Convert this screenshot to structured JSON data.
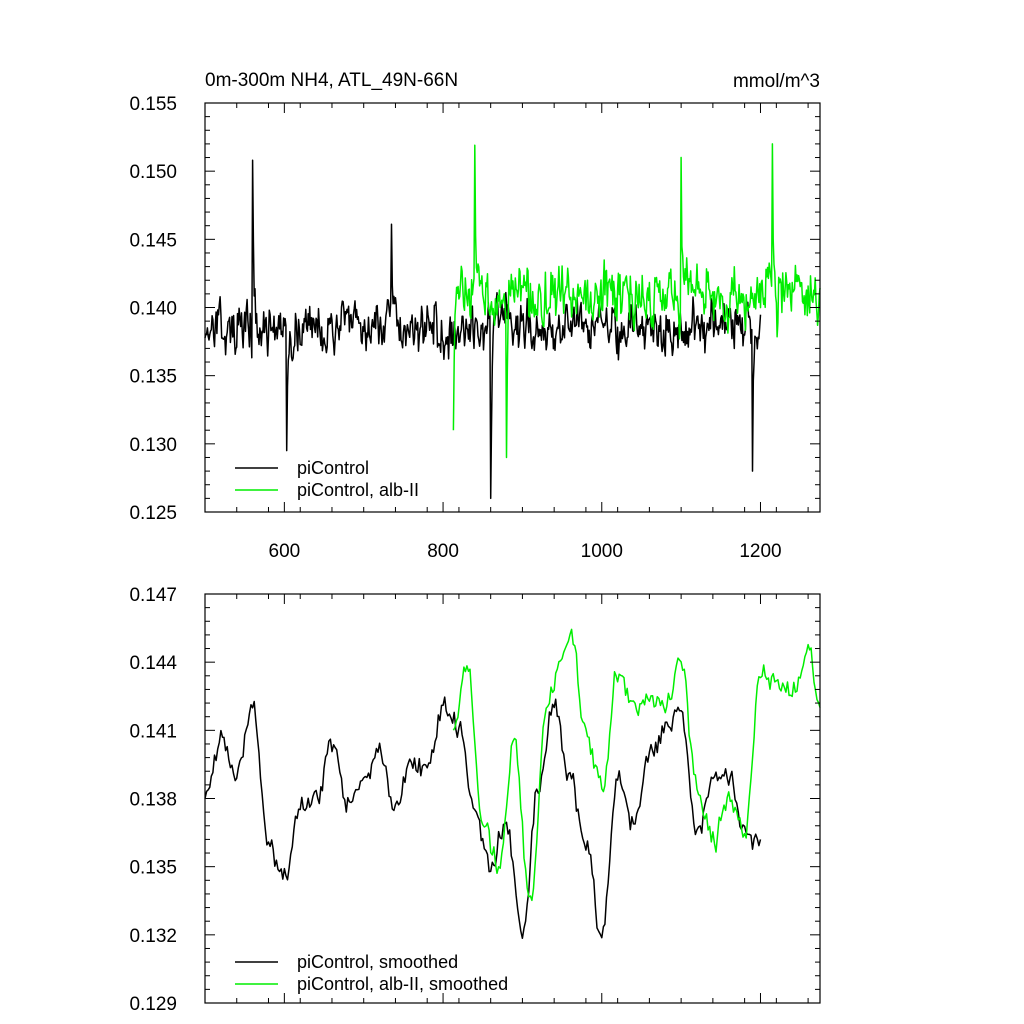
{
  "chart_data": [
    {
      "type": "line",
      "title": "0m-300m NH4, ATL_49N-66N",
      "units": "mmol/m^3",
      "xlim": [
        500,
        1275
      ],
      "ylim": [
        0.125,
        0.155
      ],
      "xticks": [
        600,
        800,
        1000,
        1200
      ],
      "xticklabels": [
        "600",
        "800",
        "1000",
        "1200"
      ],
      "yticks": [
        0.125,
        0.13,
        0.135,
        0.14,
        0.145,
        0.15,
        0.155
      ],
      "yticklabels": [
        "0.125",
        "0.130",
        "0.135",
        "0.140",
        "0.145",
        "0.150",
        "0.155"
      ],
      "legend_position": "bottom-left",
      "grid": false,
      "series": [
        {
          "name": "piControl",
          "color": "#000000",
          "x_start": 500,
          "x_end": 1200,
          "mean": 0.1385,
          "noise": 0.003,
          "spikes": [
            [
              560,
              0.1508
            ],
            [
              603,
              0.1295
            ],
            [
              860,
              0.126
            ],
            [
              1190,
              0.128
            ],
            [
              735,
              0.1461
            ]
          ]
        },
        {
          "name": "piControl, alb-II",
          "color": "#00ee00",
          "x_start": 813,
          "x_end": 1275,
          "mean": 0.141,
          "noise": 0.0035,
          "spikes": [
            [
              840,
              0.1519
            ],
            [
              813,
              0.131
            ],
            [
              880,
              0.129
            ],
            [
              1215,
              0.152
            ],
            [
              1100,
              0.151
            ]
          ]
        }
      ]
    },
    {
      "type": "line",
      "title": "",
      "xlim": [
        500,
        1275
      ],
      "ylim": [
        0.129,
        0.147
      ],
      "xticks": [
        600,
        800,
        1000,
        1200
      ],
      "xticklabels": [
        "",
        "",
        "",
        ""
      ],
      "yticks": [
        0.129,
        0.132,
        0.135,
        0.138,
        0.141,
        0.144,
        0.147
      ],
      "yticklabels": [
        "0.129",
        "0.132",
        "0.135",
        "0.138",
        "0.141",
        "0.144",
        "0.147"
      ],
      "legend_position": "bottom-left",
      "grid": false,
      "series": [
        {
          "name": "piControl, smoothed",
          "color": "#000000",
          "x": [
            500,
            520,
            540,
            560,
            580,
            600,
            620,
            640,
            660,
            680,
            700,
            720,
            740,
            760,
            780,
            800,
            820,
            840,
            860,
            880,
            900,
            920,
            940,
            960,
            980,
            1000,
            1020,
            1040,
            1060,
            1080,
            1100,
            1120,
            1140,
            1160,
            1180,
            1200
          ],
          "y": [
            0.138,
            0.1405,
            0.139,
            0.142,
            0.136,
            0.1345,
            0.1375,
            0.138,
            0.1405,
            0.1378,
            0.139,
            0.14,
            0.1375,
            0.1395,
            0.1395,
            0.142,
            0.141,
            0.1375,
            0.135,
            0.137,
            0.132,
            0.1385,
            0.142,
            0.139,
            0.136,
            0.1318,
            0.139,
            0.137,
            0.14,
            0.141,
            0.142,
            0.1365,
            0.139,
            0.139,
            0.1365,
            0.1362
          ]
        },
        {
          "name": "piControl, alb-II, smoothed",
          "color": "#00ee00",
          "x": [
            813,
            830,
            850,
            870,
            890,
            910,
            930,
            950,
            960,
            980,
            1000,
            1020,
            1040,
            1060,
            1080,
            1100,
            1120,
            1140,
            1160,
            1180,
            1200,
            1220,
            1240,
            1260,
            1275
          ],
          "y": [
            0.141,
            0.144,
            0.137,
            0.135,
            0.1405,
            0.1335,
            0.142,
            0.144,
            0.1455,
            0.141,
            0.1385,
            0.1435,
            0.142,
            0.1425,
            0.142,
            0.144,
            0.1385,
            0.136,
            0.138,
            0.1365,
            0.1435,
            0.143,
            0.1425,
            0.1445,
            0.142
          ]
        }
      ]
    }
  ]
}
